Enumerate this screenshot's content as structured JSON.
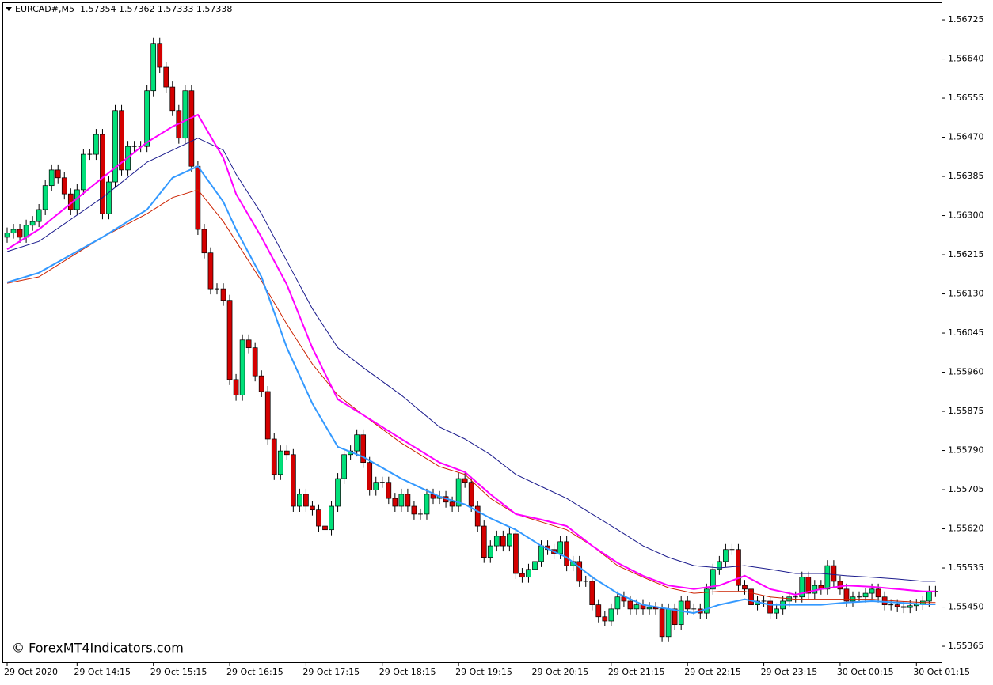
{
  "chart_data": {
    "type": "candlestick",
    "title": "EURCAD#,M5  1.57354 1.57362 1.57333 1.57338",
    "watermark": "© ForexMT4Indicators.com",
    "up_color": "#00e079",
    "down_color": "#d40000",
    "wick_color": "#000000",
    "ylim": [
      1.55329,
      1.56768
    ],
    "yticks": [
      1.55365,
      {
        "value": 1.5545,
        "label": "1.55450"
      },
      1.55535,
      {
        "value": 1.5562,
        "label": "1.55620"
      },
      1.55705,
      {
        "value": 1.5579,
        "label": "1.55790"
      },
      1.55875,
      {
        "value": 1.5596,
        "label": "1.55960"
      },
      1.56045,
      {
        "value": 1.5613,
        "label": "1.56130"
      },
      1.56215,
      {
        "value": 1.563,
        "label": "1.56300"
      },
      1.56385,
      {
        "value": 1.5647,
        "label": "1.56470"
      },
      1.56555,
      {
        "value": 1.5664,
        "label": "1.56640"
      },
      1.56725
    ],
    "xlim": [
      0,
      146
    ],
    "xticks": [
      {
        "value": 0,
        "label": "29 Oct 2020"
      },
      {
        "value": 11,
        "label": "29 Oct 14:15"
      },
      {
        "value": 23,
        "label": "29 Oct 15:15"
      },
      {
        "value": 35,
        "label": "29 Oct 16:15"
      },
      {
        "value": 47,
        "label": "29 Oct 17:15"
      },
      {
        "value": 59,
        "label": "29 Oct 18:15"
      },
      {
        "value": 71,
        "label": "29 Oct 19:15"
      },
      {
        "value": 83,
        "label": "29 Oct 20:15"
      },
      {
        "value": 95,
        "label": "29 Oct 21:15"
      },
      {
        "value": 107,
        "label": "29 Oct 22:15"
      },
      {
        "value": 119,
        "label": "29 Oct 23:15"
      },
      {
        "value": 131,
        "label": "30 Oct 00:15"
      },
      {
        "value": 143,
        "label": "30 Oct 01:15"
      }
    ],
    "open": [
      1.56253,
      1.56262,
      1.5627,
      1.56253,
      1.56279,
      1.56287,
      1.56313,
      1.56365,
      1.56399,
      1.56382,
      1.56347,
      1.56313,
      1.56356,
      1.56433,
      1.56433,
      1.56476,
      1.56304,
      1.56373,
      1.56528,
      1.56399,
      1.5645,
      1.5645,
      1.5645,
      1.56571,
      1.56674,
      1.56622,
      1.56579,
      1.56528,
      1.56468,
      1.56571,
      1.56407,
      1.5627,
      1.56219,
      1.56141,
      1.56141,
      1.56116,
      1.55944,
      1.5591,
      1.5603,
      1.56013,
      1.55952,
      1.55918,
      1.55815,
      1.55738,
      1.55789,
      1.55781,
      1.55669,
      1.55695,
      1.55669,
      1.55661,
      1.55626,
      1.55618,
      1.55669,
      1.55729,
      1.55781,
      1.55789,
      1.55824,
      1.55764,
      1.55704,
      1.55721,
      1.55721,
      1.55686,
      1.55669,
      1.55695,
      1.55669,
      1.55652,
      1.55652,
      1.55695,
      1.55686,
      1.5569,
      1.55678,
      1.55669,
      1.55729,
      1.55721,
      1.55669,
      1.55626,
      1.55558,
      1.55583,
      1.55604,
      1.55583,
      1.55609,
      1.55523,
      1.55515,
      1.55532,
      1.55549,
      1.55583,
      1.55575,
      1.55566,
      1.55592,
      1.5554,
      1.55549,
      1.55506,
      1.55506,
      1.55455,
      1.55429,
      1.5542,
      1.55446,
      1.55472,
      1.55463,
      1.55446,
      1.55455,
      1.55446,
      1.55449,
      1.55446,
      1.55386,
      1.55446,
      1.55412,
      1.55463,
      1.55446,
      1.55446,
      1.55437,
      1.55489,
      1.55532,
      1.55549,
      1.55575,
      1.55575,
      1.55497,
      1.55489,
      1.55455,
      1.55463,
      1.55463,
      1.55437,
      1.55446,
      1.55463,
      1.55472,
      1.55472,
      1.55515,
      1.5548,
      1.55497,
      1.55489,
      1.5554,
      1.55506,
      1.55489,
      1.55463,
      1.55472,
      1.55472,
      1.5548,
      1.55489,
      1.55472,
      1.55455,
      1.55455,
      1.55451,
      1.55449,
      1.55453,
      1.55456,
      1.55463,
      1.55484
    ],
    "high": [
      1.56274,
      1.56282,
      1.56282,
      1.56291,
      1.56299,
      1.56325,
      1.56377,
      1.56411,
      1.56411,
      1.56394,
      1.56359,
      1.56368,
      1.56445,
      1.56445,
      1.56488,
      1.56488,
      1.56385,
      1.5654,
      1.5654,
      1.56462,
      1.56462,
      1.56462,
      1.56583,
      1.56686,
      1.56686,
      1.56634,
      1.56591,
      1.5654,
      1.56583,
      1.56583,
      1.56419,
      1.56282,
      1.56231,
      1.56153,
      1.56153,
      1.56128,
      1.55956,
      1.56042,
      1.56042,
      1.56025,
      1.55964,
      1.5593,
      1.55827,
      1.55801,
      1.55801,
      1.55793,
      1.55707,
      1.55707,
      1.55681,
      1.55673,
      1.55638,
      1.55681,
      1.55741,
      1.55793,
      1.55801,
      1.55836,
      1.55836,
      1.55776,
      1.55733,
      1.55733,
      1.55733,
      1.55698,
      1.55707,
      1.55707,
      1.55681,
      1.55664,
      1.55707,
      1.55707,
      1.55702,
      1.55702,
      1.5569,
      1.55741,
      1.55741,
      1.55733,
      1.55681,
      1.55638,
      1.55595,
      1.55616,
      1.55616,
      1.55621,
      1.55621,
      1.55535,
      1.55544,
      1.55561,
      1.55595,
      1.55595,
      1.55587,
      1.55604,
      1.55604,
      1.55561,
      1.55561,
      1.55518,
      1.55518,
      1.55467,
      1.55441,
      1.55458,
      1.55484,
      1.55484,
      1.55475,
      1.55467,
      1.55467,
      1.55461,
      1.55461,
      1.55458,
      1.55458,
      1.55458,
      1.55475,
      1.55475,
      1.55458,
      1.55458,
      1.55501,
      1.55544,
      1.55561,
      1.55587,
      1.55587,
      1.55587,
      1.55509,
      1.55501,
      1.55475,
      1.55475,
      1.55475,
      1.55458,
      1.55475,
      1.55484,
      1.55484,
      1.55527,
      1.55527,
      1.55509,
      1.55509,
      1.55552,
      1.55552,
      1.55518,
      1.55501,
      1.55484,
      1.55484,
      1.55492,
      1.55501,
      1.55501,
      1.55484,
      1.55467,
      1.55467,
      1.55463,
      1.55465,
      1.55468,
      1.55475,
      1.55496,
      1.55496
    ],
    "low": [
      1.56241,
      1.5625,
      1.56241,
      1.56241,
      1.56267,
      1.56275,
      1.56301,
      1.56353,
      1.5637,
      1.56335,
      1.56301,
      1.56301,
      1.56344,
      1.56421,
      1.56421,
      1.56292,
      1.56292,
      1.56361,
      1.56387,
      1.56387,
      1.56438,
      1.56438,
      1.56438,
      1.56559,
      1.5661,
      1.56567,
      1.56516,
      1.56456,
      1.56456,
      1.56395,
      1.56258,
      1.56207,
      1.56129,
      1.56129,
      1.56104,
      1.55932,
      1.55898,
      1.55898,
      1.56001,
      1.5594,
      1.55906,
      1.55803,
      1.55726,
      1.55726,
      1.55769,
      1.55657,
      1.55657,
      1.55657,
      1.55649,
      1.55614,
      1.55606,
      1.55606,
      1.55657,
      1.55717,
      1.55769,
      1.55777,
      1.55752,
      1.55692,
      1.55692,
      1.55709,
      1.55674,
      1.55657,
      1.55657,
      1.55657,
      1.5564,
      1.5564,
      1.5564,
      1.55674,
      1.55674,
      1.55666,
      1.55657,
      1.55657,
      1.55709,
      1.55657,
      1.55614,
      1.55546,
      1.55546,
      1.55571,
      1.55571,
      1.55571,
      1.55511,
      1.55503,
      1.55503,
      1.5552,
      1.55537,
      1.55563,
      1.55554,
      1.55554,
      1.55528,
      1.55528,
      1.55494,
      1.55494,
      1.55443,
      1.55417,
      1.55408,
      1.55408,
      1.55434,
      1.55451,
      1.55434,
      1.55434,
      1.55434,
      1.55434,
      1.55434,
      1.55374,
      1.55374,
      1.554,
      1.554,
      1.55434,
      1.55434,
      1.55425,
      1.55425,
      1.55477,
      1.5552,
      1.55537,
      1.55563,
      1.55485,
      1.55477,
      1.55443,
      1.55443,
      1.55451,
      1.55425,
      1.55425,
      1.55434,
      1.55451,
      1.5546,
      1.5546,
      1.55468,
      1.55468,
      1.55477,
      1.55477,
      1.55494,
      1.55477,
      1.55451,
      1.55451,
      1.5546,
      1.5546,
      1.55468,
      1.5546,
      1.55443,
      1.55443,
      1.55439,
      1.55437,
      1.55437,
      1.55441,
      1.55444,
      1.55451,
      1.55472
    ],
    "close": [
      1.56262,
      1.5627,
      1.56253,
      1.56279,
      1.56287,
      1.56313,
      1.56365,
      1.56399,
      1.56382,
      1.56347,
      1.56313,
      1.56356,
      1.56433,
      1.56433,
      1.56476,
      1.56304,
      1.56373,
      1.56528,
      1.56399,
      1.5645,
      1.5645,
      1.5645,
      1.56571,
      1.56674,
      1.56622,
      1.56579,
      1.56528,
      1.56468,
      1.56571,
      1.56407,
      1.5627,
      1.56219,
      1.56141,
      1.56141,
      1.56116,
      1.55944,
      1.5591,
      1.5603,
      1.56013,
      1.55952,
      1.55918,
      1.55815,
      1.55738,
      1.55789,
      1.55781,
      1.55669,
      1.55695,
      1.55669,
      1.55661,
      1.55626,
      1.55618,
      1.55669,
      1.55729,
      1.55781,
      1.55789,
      1.55824,
      1.55764,
      1.55704,
      1.55721,
      1.55721,
      1.55686,
      1.55669,
      1.55695,
      1.55669,
      1.55652,
      1.55652,
      1.55695,
      1.55686,
      1.5569,
      1.55678,
      1.55669,
      1.55729,
      1.55721,
      1.55669,
      1.55626,
      1.55558,
      1.55583,
      1.55604,
      1.55583,
      1.55609,
      1.55523,
      1.55515,
      1.55532,
      1.55549,
      1.55583,
      1.55575,
      1.55566,
      1.55592,
      1.5554,
      1.55549,
      1.55506,
      1.55506,
      1.55455,
      1.55429,
      1.5542,
      1.55446,
      1.55472,
      1.55463,
      1.55446,
      1.55455,
      1.55446,
      1.55449,
      1.55446,
      1.55386,
      1.55446,
      1.55412,
      1.55463,
      1.55446,
      1.55446,
      1.55437,
      1.55489,
      1.55532,
      1.55549,
      1.55575,
      1.55575,
      1.55497,
      1.55489,
      1.55455,
      1.55463,
      1.55463,
      1.55437,
      1.55446,
      1.55463,
      1.55472,
      1.55472,
      1.55515,
      1.5548,
      1.55497,
      1.55489,
      1.5554,
      1.55506,
      1.55489,
      1.55463,
      1.55472,
      1.55472,
      1.5548,
      1.55489,
      1.55472,
      1.55455,
      1.55455,
      1.55451,
      1.55449,
      1.55453,
      1.55456,
      1.55463,
      1.55484,
      1.55484
    ],
    "lines": [
      {
        "color": "#1a1a8c",
        "x": [
          0,
          5,
          15,
          22,
          26,
          30,
          34,
          36,
          40,
          44,
          48,
          52,
          56,
          62,
          68,
          72,
          76,
          80,
          84,
          88,
          92,
          96,
          100,
          104,
          108,
          112,
          116,
          120,
          124,
          128,
          132,
          136,
          140,
          144,
          146
        ],
        "values": [
          1.56222,
          1.56244,
          1.56339,
          1.56416,
          1.56442,
          1.56468,
          1.56442,
          1.5639,
          1.56304,
          1.56201,
          1.56098,
          1.56013,
          1.5597,
          1.5591,
          1.55841,
          1.55815,
          1.55781,
          1.55738,
          1.55712,
          1.55686,
          1.55652,
          1.55618,
          1.55583,
          1.55558,
          1.5554,
          1.55535,
          1.5554,
          1.55532,
          1.55523,
          1.55523,
          1.55518,
          1.55515,
          1.55511,
          1.55506,
          1.55506
        ]
      },
      {
        "color": "#cc2200",
        "x": [
          0,
          5,
          15,
          22,
          26,
          30,
          34,
          36,
          40,
          44,
          48,
          52,
          56,
          62,
          68,
          72,
          76,
          80,
          84,
          88,
          92,
          96,
          100,
          104,
          108,
          112,
          116,
          120,
          124,
          128,
          132,
          136,
          140,
          144,
          146
        ],
        "values": [
          1.56153,
          1.56167,
          1.56253,
          1.56304,
          1.56339,
          1.56356,
          1.56287,
          1.56244,
          1.56158,
          1.56064,
          1.55978,
          1.5591,
          1.55867,
          1.55806,
          1.55755,
          1.55738,
          1.55686,
          1.55652,
          1.55635,
          1.55618,
          1.55583,
          1.5554,
          1.55515,
          1.55492,
          1.5548,
          1.55484,
          1.55484,
          1.55472,
          1.55467,
          1.55467,
          1.55467,
          1.55467,
          1.55463,
          1.5546,
          1.5546
        ]
      },
      {
        "color": "#3399ff",
        "x": [
          0,
          5,
          15,
          22,
          26,
          30,
          34,
          36,
          40,
          44,
          48,
          52,
          56,
          62,
          68,
          72,
          76,
          80,
          84,
          88,
          92,
          96,
          100,
          104,
          108,
          112,
          116,
          120,
          124,
          128,
          132,
          136,
          140,
          144,
          146
        ],
        "values": [
          1.56155,
          1.56176,
          1.56253,
          1.56313,
          1.56382,
          1.56407,
          1.5633,
          1.5627,
          1.56167,
          1.56013,
          1.55892,
          1.55798,
          1.55776,
          1.55729,
          1.5569,
          1.55673,
          1.55643,
          1.55618,
          1.55583,
          1.55558,
          1.55515,
          1.5548,
          1.55455,
          1.55446,
          1.55437,
          1.55455,
          1.55467,
          1.55455,
          1.55455,
          1.55455,
          1.5546,
          1.55463,
          1.5546,
          1.55456,
          1.55456
        ]
      },
      {
        "color": "#ff00ff",
        "x": [
          0,
          5,
          15,
          22,
          26,
          30,
          34,
          36,
          40,
          44,
          48,
          52,
          56,
          62,
          68,
          72,
          76,
          80,
          84,
          88,
          92,
          96,
          100,
          104,
          108,
          112,
          116,
          120,
          124,
          128,
          132,
          136,
          140,
          144,
          146
        ],
        "values": [
          1.56227,
          1.5627,
          1.56382,
          1.56459,
          1.56493,
          1.56519,
          1.56425,
          1.56347,
          1.56253,
          1.5615,
          1.56013,
          1.55901,
          1.55867,
          1.55815,
          1.55764,
          1.55743,
          1.55695,
          1.55652,
          1.5564,
          1.55626,
          1.55583,
          1.55546,
          1.55518,
          1.55497,
          1.55489,
          1.55497,
          1.55518,
          1.55489,
          1.55477,
          1.55489,
          1.55497,
          1.55494,
          1.55489,
          1.55484,
          1.55484
        ]
      }
    ]
  }
}
